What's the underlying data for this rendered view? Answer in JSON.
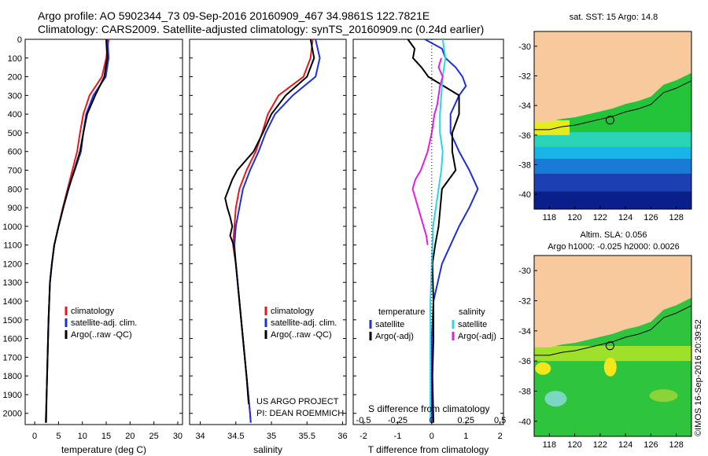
{
  "header": {
    "line1": "Argo profile: AO 5902344_73 09-Sep-2016 20160909_467 34.9861S 122.7821E",
    "line2": "Climatology: CARS2009. Satellite-adjusted climatology: synTS_20160909.nc (0.24d earlier)"
  },
  "colors": {
    "climatology": "#e41a1c",
    "satellite": "#1f2fd6",
    "argo": "#000000",
    "satellite_salinity": "#27d8e3",
    "argo_salinity_diff": "#e21fe6",
    "land": "#f7c99c"
  },
  "chart_data": [
    {
      "type": "line",
      "panel": "temperature",
      "xlabel": "temperature (deg C)",
      "xticks": [
        "0",
        "5",
        "10",
        "15",
        "20",
        "25",
        "30"
      ],
      "xlim": [
        -2,
        31
      ],
      "ylim": [
        2060,
        0
      ],
      "yticks": [
        "0",
        "100",
        "200",
        "300",
        "400",
        "500",
        "600",
        "700",
        "800",
        "900",
        "1000",
        "1100",
        "1200",
        "1300",
        "1400",
        "1500",
        "1600",
        "1700",
        "1800",
        "1900",
        "2000"
      ],
      "legend": [
        "climatology",
        "satellite-adj. clim.",
        "Argo(..raw -QC)"
      ],
      "series": [
        {
          "name": "climatology",
          "color": "#e41a1c",
          "depth": [
            0,
            100,
            200,
            300,
            400,
            500,
            600,
            700,
            800,
            900,
            1000,
            1100,
            1200,
            1300,
            1500,
            1700,
            1900,
            2050
          ],
          "values": [
            15.5,
            15.0,
            14.1,
            11.5,
            10.2,
            9.5,
            8.9,
            7.9,
            6.9,
            5.9,
            5.0,
            4.1,
            3.6,
            3.2,
            2.9,
            2.7,
            2.5,
            2.3
          ]
        },
        {
          "name": "satellite-adj. clim.",
          "color": "#1f2fd6",
          "depth": [
            0,
            100,
            200,
            300,
            400,
            500,
            600,
            700,
            800,
            900,
            1000,
            1100,
            1200,
            1300,
            1500,
            1700,
            1900,
            2050
          ],
          "values": [
            15.3,
            15.5,
            14.9,
            12.3,
            10.8,
            10.2,
            9.7,
            8.4,
            7.0,
            6.0,
            5.0,
            4.1,
            3.6,
            3.2,
            2.9,
            2.7,
            2.5,
            2.3
          ]
        },
        {
          "name": "Argo(..raw -QC)",
          "color": "#000000",
          "depth": [
            0,
            100,
            200,
            300,
            400,
            500,
            600,
            700,
            800,
            900,
            1000,
            1100,
            1200,
            1300,
            1500,
            1700,
            1900,
            2050
          ],
          "values": [
            15.0,
            15.2,
            14.6,
            12.7,
            11.0,
            10.2,
            9.5,
            8.3,
            7.1,
            6.0,
            5.0,
            4.1,
            3.6,
            3.2,
            2.9,
            2.7,
            2.5,
            2.4
          ]
        }
      ]
    },
    {
      "type": "line",
      "panel": "salinity",
      "xlabel": "salinity",
      "xticks": [
        "34",
        "34.5",
        "35",
        "35.5",
        "36"
      ],
      "xlim": [
        33.85,
        36.05
      ],
      "ylim": [
        2060,
        0
      ],
      "legend": [
        "climatology",
        "satellite-adj. clim.",
        "Argo(..raw -QC)"
      ],
      "annotation": [
        "US ARGO PROJECT",
        "PI: DEAN ROEMMICH"
      ],
      "series": [
        {
          "name": "climatology",
          "color": "#e41a1c",
          "depth": [
            0,
            100,
            200,
            300,
            400,
            500,
            600,
            700,
            800,
            900,
            1000,
            1100,
            1200,
            1400,
            1600,
            1800,
            2000,
            2050
          ],
          "values": [
            35.58,
            35.55,
            35.45,
            35.1,
            34.95,
            34.87,
            34.78,
            34.65,
            34.55,
            34.5,
            34.48,
            34.46,
            34.5,
            34.55,
            34.6,
            34.65,
            34.7,
            34.71
          ]
        },
        {
          "name": "satellite-adj. clim.",
          "color": "#1f2fd6",
          "depth": [
            0,
            100,
            200,
            300,
            400,
            500,
            600,
            700,
            800,
            900,
            1000,
            1100,
            1200,
            1400,
            1600,
            1800,
            2000,
            2050
          ],
          "values": [
            35.62,
            35.68,
            35.62,
            35.3,
            35.05,
            34.92,
            34.82,
            34.7,
            34.6,
            34.55,
            34.5,
            34.48,
            34.5,
            34.55,
            34.6,
            34.65,
            34.7,
            34.71
          ]
        },
        {
          "name": "Argo(..raw -QC)",
          "color": "#000000",
          "depth": [
            0,
            100,
            200,
            300,
            400,
            500,
            600,
            700,
            750,
            800,
            850,
            900,
            950,
            1000,
            1050,
            1100,
            1200,
            1400,
            1600,
            1800,
            1950
          ],
          "values": [
            35.55,
            35.6,
            35.5,
            35.2,
            35.0,
            34.88,
            34.75,
            34.52,
            34.45,
            34.4,
            34.35,
            34.38,
            34.42,
            34.45,
            34.42,
            34.47,
            34.5,
            34.55,
            34.6,
            34.65,
            34.68
          ]
        }
      ]
    },
    {
      "type": "line",
      "panel": "difference",
      "xlabel_bottom": "T difference from climatology",
      "xlabel_top": "S difference from climatology",
      "xticks_T": [
        "-2",
        "-1",
        "0",
        "1",
        "2"
      ],
      "xticks_S": [
        "-0.5",
        "-0.25",
        "0",
        "0.25",
        "0.5"
      ],
      "xlim_T": [
        -2.3,
        2.1
      ],
      "ylim": [
        2060,
        0
      ],
      "legend_temperature_title": "temperature",
      "legend_salinity_title": "salinity",
      "legend_temperature": [
        "satellite",
        "Argo(-adj)"
      ],
      "legend_salinity": [
        "satellite",
        "Argo(-adj)"
      ],
      "series": [
        {
          "name": "temperature satellite",
          "color": "#1f2fd6",
          "depth": [
            0,
            50,
            100,
            150,
            200,
            250,
            300,
            400,
            500,
            600,
            700,
            800,
            900,
            1000,
            1200,
            1400,
            1600,
            1800,
            2050
          ],
          "values": [
            -0.2,
            0.3,
            0.4,
            0.7,
            0.9,
            1.0,
            0.8,
            0.55,
            0.55,
            0.8,
            1.1,
            1.35,
            1.1,
            0.8,
            0.3,
            0.05,
            0.0,
            0.0,
            0.0
          ]
        },
        {
          "name": "temperature Argo(-adj)",
          "color": "#000000",
          "depth": [
            0,
            50,
            100,
            150,
            200,
            300,
            400,
            500,
            600,
            700,
            800,
            900,
            1000,
            1100,
            1200,
            1400,
            1600,
            1800,
            2050
          ],
          "values": [
            -0.7,
            -0.5,
            -0.55,
            -0.3,
            -0.1,
            0.8,
            0.8,
            0.6,
            0.6,
            0.7,
            0.3,
            0.25,
            0.2,
            0.1,
            0.02,
            0.05,
            0.05,
            0.02,
            0.05
          ]
        },
        {
          "name": "salinity satellite",
          "color": "#27d8e3",
          "depth": [
            0,
            100,
            200,
            300,
            400,
            500,
            600,
            700,
            800,
            900,
            1000,
            1200,
            1400,
            1600,
            1800,
            2050
          ],
          "values": [
            0.08,
            0.1,
            0.08,
            0.07,
            0.06,
            0.06,
            0.08,
            0.07,
            0.05,
            0.03,
            0.01,
            0.0,
            -0.01,
            -0.01,
            -0.01,
            -0.01
          ]
        },
        {
          "name": "salinity Argo(-adj)",
          "color": "#e21fe6",
          "depth": [
            100,
            150,
            200,
            250,
            300,
            350,
            400,
            500,
            600,
            700,
            750,
            800,
            850,
            900,
            950,
            1000,
            1050,
            1100
          ],
          "values": [
            0.07,
            0.05,
            0.08,
            0.06,
            0.05,
            0.04,
            0.02,
            0.0,
            -0.03,
            -0.08,
            -0.12,
            -0.14,
            -0.12,
            -0.1,
            -0.08,
            -0.06,
            -0.04,
            -0.03
          ]
        }
      ]
    }
  ],
  "maps": {
    "sst": {
      "title": "sat. SST: 15 Argo: 14.8",
      "xticks": [
        "118",
        "120",
        "122",
        "124",
        "126",
        "128"
      ],
      "yticks": [
        "-30",
        "-32",
        "-34",
        "-36",
        "-38",
        "-40"
      ]
    },
    "sla": {
      "title1": "Altim. SLA: 0.056",
      "title2": "Argo h1000: -0.025 h2000: 0.0026",
      "xticks": [
        "118",
        "120",
        "122",
        "124",
        "126",
        "128"
      ],
      "yticks": [
        "-30",
        "-32",
        "-34",
        "-36",
        "-38",
        "-40"
      ]
    }
  },
  "stamp": "©IMOS 16-Sep-2016 20:39:52"
}
